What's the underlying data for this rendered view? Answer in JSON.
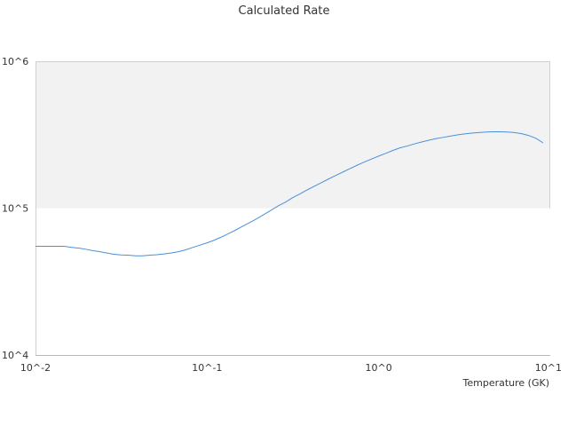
{
  "chart_data": {
    "type": "line",
    "title": "Calculated Rate",
    "xlabel": "Temperature (GK)",
    "ylabel": "",
    "xscale": "log",
    "yscale": "log",
    "xlim": [
      0.01,
      10
    ],
    "ylim": [
      10000,
      1000000
    ],
    "x_tick_labels": [
      "10^-2",
      "10^-1",
      "10^0",
      "10^1"
    ],
    "y_tick_labels": [
      "10^4",
      "10^5",
      "10^6"
    ],
    "shaded_band": {
      "from": 100000,
      "to": 1000000,
      "color": "#f2f2f2"
    },
    "grid": false,
    "series": [
      {
        "color": "#4a90d9",
        "x": [
          0.01,
          0.0147,
          0.0162,
          0.0178,
          0.0196,
          0.0214,
          0.0237,
          0.026,
          0.0285,
          0.0316,
          0.0347,
          0.0383,
          0.042,
          0.0464,
          0.051,
          0.0562,
          0.0619,
          0.0681,
          0.075,
          0.0825,
          0.0909,
          0.1,
          0.11,
          0.121,
          0.133,
          0.147,
          0.162,
          0.178,
          0.196,
          0.216,
          0.237,
          0.261,
          0.287,
          0.316,
          0.348,
          0.383,
          0.422,
          0.464,
          0.511,
          0.562,
          0.619,
          0.681,
          0.75,
          0.825,
          0.909,
          1.0,
          1.1,
          1.21,
          1.33,
          1.47,
          1.62,
          1.78,
          1.96,
          2.15,
          2.37,
          2.61,
          2.87,
          3.16,
          3.48,
          3.83,
          4.22,
          4.64,
          5.11,
          5.62,
          6.19,
          6.81,
          7.5,
          8.25,
          9.09
        ],
        "y": [
          55000,
          55000,
          54000,
          53500,
          52500,
          51500,
          50500,
          49500,
          48500,
          48000,
          47800,
          47300,
          47300,
          47800,
          48200,
          48800,
          49500,
          50500,
          52000,
          54000,
          56000,
          58000,
          60500,
          63500,
          67000,
          71000,
          75500,
          80000,
          85000,
          91000,
          97000,
          104000,
          110000,
          118000,
          125000,
          133000,
          141000,
          149000,
          158000,
          167000,
          176000,
          186000,
          196000,
          206000,
          216000,
          226000,
          236000,
          247000,
          257000,
          265000,
          274000,
          282000,
          290000,
          297000,
          303000,
          309000,
          315000,
          320000,
          324000,
          327000,
          330000,
          331000,
          331000,
          330000,
          327000,
          321000,
          312000,
          299000,
          278000
        ]
      }
    ]
  }
}
